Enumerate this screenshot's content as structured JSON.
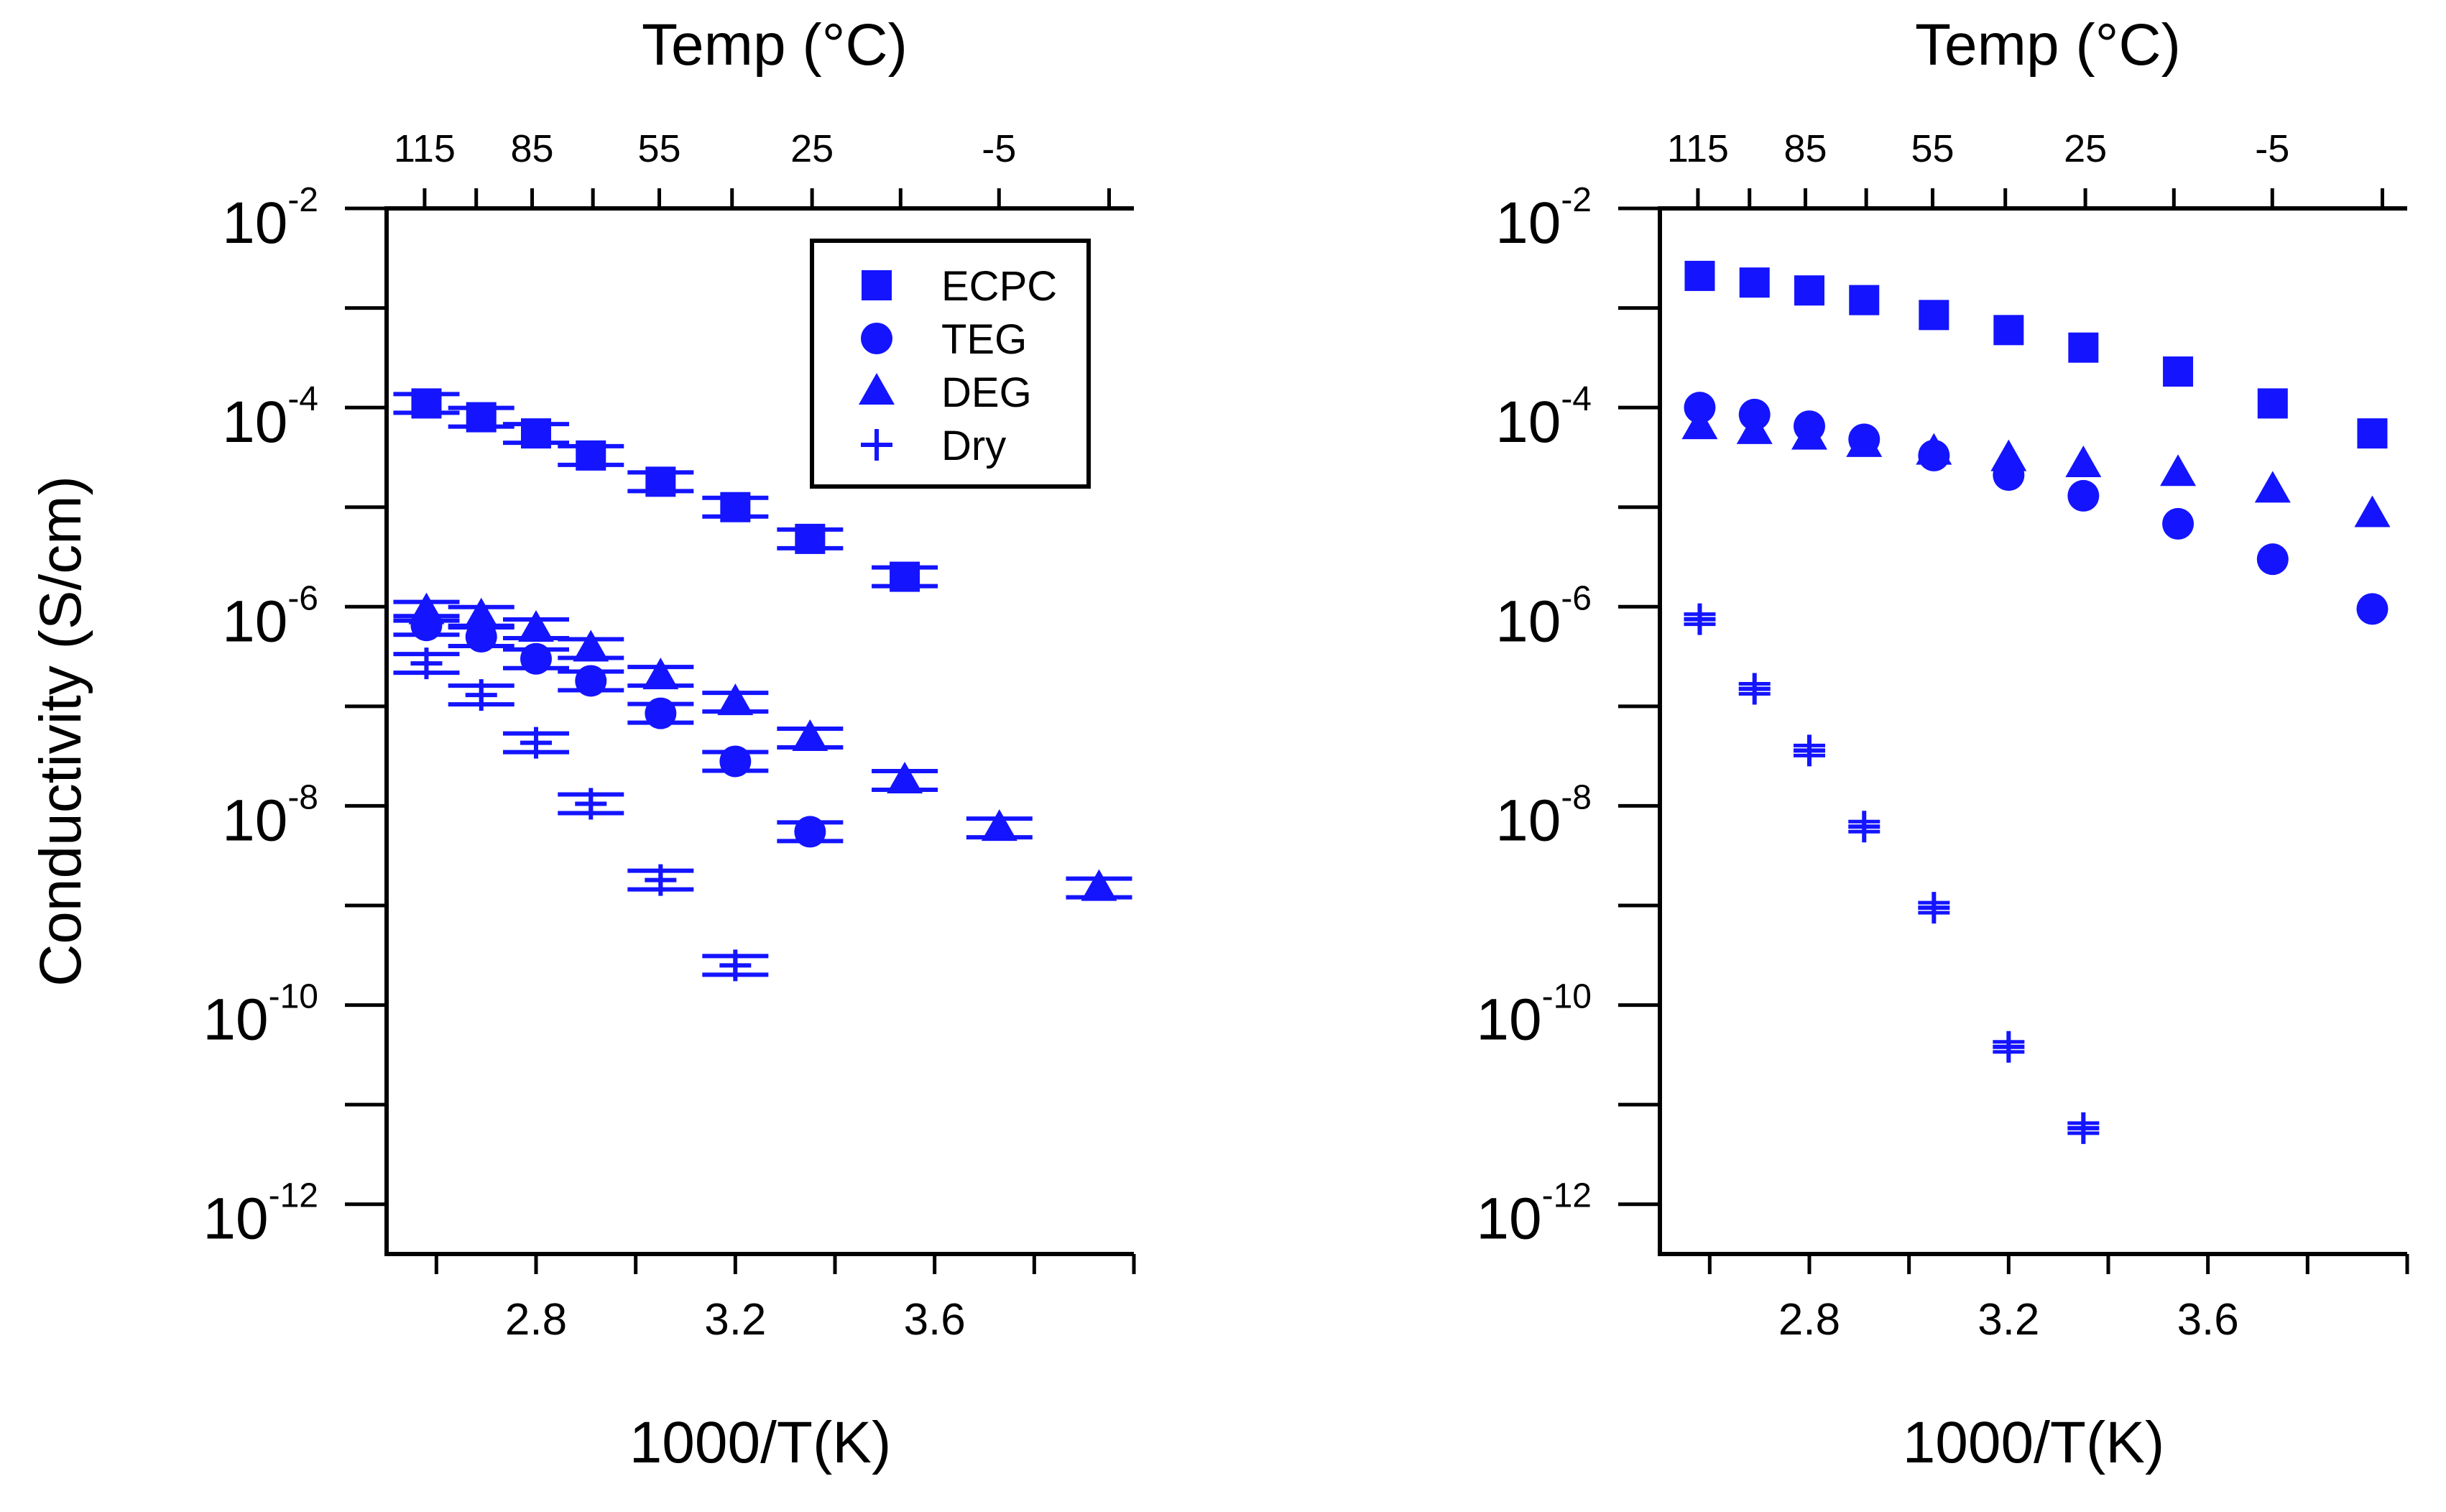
{
  "chart_data": [
    {
      "type": "scatter",
      "panel": "left",
      "top_axis": {
        "title": "Temp (°C)",
        "ticks": [
          115,
          85,
          55,
          25,
          -5
        ]
      },
      "xlabel": "1000/T(K)",
      "ylabel": "Conductivity (S/cm)",
      "x_ticks": [
        "2.8",
        "3.2",
        "3.6"
      ],
      "xlim": [
        2.5,
        4.0
      ],
      "ylim_log10": [
        -12.5,
        -2
      ],
      "y_tick_base": "10",
      "y_tick_exponents": [
        "-2",
        "-4",
        "-6",
        "-8",
        "-10",
        "-12"
      ],
      "legend": {
        "position": "top-right",
        "entries": [
          {
            "label": "ECPC",
            "marker": "square"
          },
          {
            "label": "TEG",
            "marker": "circle"
          },
          {
            "label": "DEG",
            "marker": "triangle"
          },
          {
            "label": "Dry",
            "marker": "plus"
          }
        ]
      },
      "error_bars": true,
      "series": [
        {
          "name": "ECPC",
          "marker": "square",
          "x": [
            2.58,
            2.69,
            2.8,
            2.91,
            3.05,
            3.2,
            3.35,
            3.54
          ],
          "y": [
            0.00011,
            8e-05,
            5.5e-05,
            3.3e-05,
            1.8e-05,
            1e-05,
            4.8e-06,
            2e-06
          ]
        },
        {
          "name": "TEG",
          "marker": "circle",
          "x": [
            2.58,
            2.69,
            2.8,
            2.91,
            3.05,
            3.2,
            3.35
          ],
          "y": [
            6.5e-07,
            5e-07,
            3e-07,
            1.8e-07,
            8.5e-08,
            2.8e-08,
            5.5e-09
          ]
        },
        {
          "name": "DEG",
          "marker": "triangle",
          "x": [
            2.58,
            2.69,
            2.8,
            2.91,
            3.05,
            3.2,
            3.35,
            3.54,
            3.73,
            3.93
          ],
          "y": [
            9e-07,
            8e-07,
            6e-07,
            3.8e-07,
            2e-07,
            1.1e-07,
            4.8e-08,
            1.8e-08,
            6e-09,
            1.5e-09
          ]
        },
        {
          "name": "Dry",
          "marker": "plus",
          "x": [
            2.58,
            2.69,
            2.8,
            2.91,
            3.05,
            3.2
          ],
          "y": [
            2.7e-07,
            1.3e-07,
            4.3e-08,
            1.05e-08,
            1.8e-09,
            2.5e-10
          ]
        }
      ]
    },
    {
      "type": "scatter",
      "panel": "right",
      "top_axis": {
        "title": "Temp (°C)",
        "ticks": [
          115,
          85,
          55,
          25,
          -5
        ]
      },
      "xlabel": "1000/T(K)",
      "ylabel": "",
      "x_ticks": [
        "2.8",
        "3.2",
        "3.6"
      ],
      "xlim": [
        2.5,
        4.0
      ],
      "ylim_log10": [
        -12.5,
        -2
      ],
      "y_tick_base": "10",
      "y_tick_exponents": [
        "-2",
        "-4",
        "-6",
        "-8",
        "-10",
        "-12"
      ],
      "error_bars": false,
      "series": [
        {
          "name": "ECPC",
          "marker": "square",
          "x": [
            2.58,
            2.69,
            2.8,
            2.91,
            3.05,
            3.2,
            3.35,
            3.54,
            3.73,
            3.93
          ],
          "y": [
            0.0021,
            0.0018,
            0.0015,
            0.0012,
            0.00085,
            0.0006,
            0.0004,
            0.00023,
            0.00011,
            5.5e-05
          ]
        },
        {
          "name": "TEG",
          "marker": "circle",
          "x": [
            2.58,
            2.69,
            2.8,
            2.91,
            3.05,
            3.2,
            3.35,
            3.54,
            3.73,
            3.93
          ],
          "y": [
            0.0001,
            8.5e-05,
            6.5e-05,
            4.8e-05,
            3.3e-05,
            2.1e-05,
            1.3e-05,
            6.8e-06,
            3e-06,
            9.5e-07
          ]
        },
        {
          "name": "DEG",
          "marker": "triangle",
          "x": [
            2.58,
            2.69,
            2.8,
            2.91,
            3.05,
            3.2,
            3.35,
            3.54,
            3.73,
            3.93
          ],
          "y": [
            6.5e-05,
            5.8e-05,
            5.1e-05,
            4.3e-05,
            3.6e-05,
            3.1e-05,
            2.7e-05,
            2.2e-05,
            1.5e-05,
            8.5e-06
          ]
        },
        {
          "name": "Dry",
          "marker": "plus",
          "x": [
            2.58,
            2.69,
            2.8,
            2.91,
            3.05,
            3.2,
            3.35
          ],
          "y": [
            7.5e-07,
            1.5e-07,
            3.6e-08,
            6.2e-09,
            9.5e-10,
            3.8e-11,
            5.8e-12
          ]
        }
      ]
    }
  ],
  "colors": {
    "marker": "#1414ff",
    "axis": "#000000"
  }
}
